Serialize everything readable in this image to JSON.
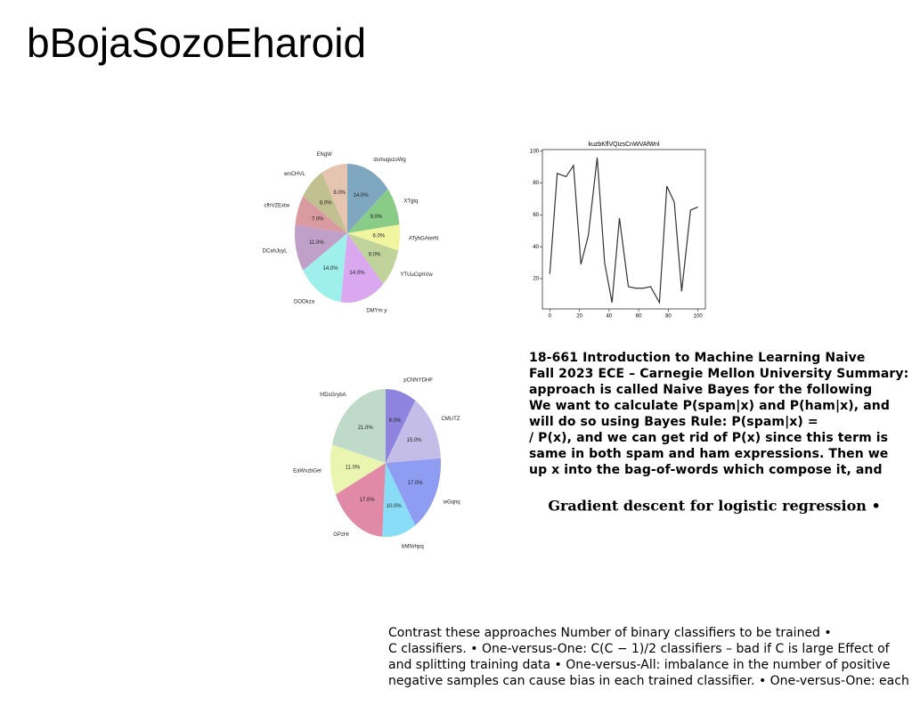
{
  "title": "bBojaSozoEharoid",
  "chart_data": [
    {
      "type": "pie",
      "categories": [
        "dsmugvzoWg",
        "XTgtq",
        "ATyhGAterN",
        "YTUuCqmVw",
        "DMYm y",
        "DOOkza",
        "DCahJuyL",
        "cfhVZExtw",
        "wnCHVL",
        "ENgW"
      ],
      "values": [
        14,
        9,
        6,
        9,
        14,
        14,
        11,
        7,
        8,
        8
      ],
      "value_labels": [
        "14.0%",
        "9.0%",
        "6.0%",
        "9.0%",
        "14.0%",
        "14.0%",
        "11.0%",
        "7.0%",
        "8.0%",
        "8.0%"
      ],
      "colors": [
        "#7fa8c0",
        "#88cc88",
        "#f2f5a0",
        "#bfd39a",
        "#d9a8ef",
        "#9ff0ec",
        "#c0a0c8",
        "#da9ba0",
        "#c0c090",
        "#e5c4b0"
      ]
    },
    {
      "type": "line",
      "title": "kuzbKflVQizsCnWVAfWnl",
      "x": [
        0,
        5,
        11,
        16,
        21,
        26,
        32,
        37,
        42,
        47,
        53,
        58,
        63,
        68,
        74,
        79,
        84,
        89,
        95,
        100
      ],
      "values": [
        23,
        86,
        84,
        91,
        29,
        47,
        96,
        30,
        5,
        58,
        15,
        14,
        14,
        15,
        5,
        78,
        68,
        12,
        63,
        65
      ],
      "color": "#333333",
      "xlim": [
        -5,
        105
      ],
      "ylim": [
        1,
        101
      ],
      "xticks": [
        0,
        20,
        40,
        60,
        80,
        100
      ],
      "yticks": [
        20,
        40,
        60,
        80,
        100
      ]
    },
    {
      "type": "pie",
      "categories": [
        "pCNNYDHF",
        "CMUTZ",
        "wGqnq",
        "bMNrhpq",
        "GPzHr",
        "EaWxzbGel",
        "hfDsGrybA"
      ],
      "values": [
        9,
        15,
        17,
        10,
        17,
        11,
        21
      ],
      "value_labels": [
        "9.0%",
        "15.0%",
        "17.0%",
        "10.0%",
        "17.0%",
        "11.0%",
        "21.0%"
      ],
      "colors": [
        "#8e84e0",
        "#c4bde8",
        "#8e9cf2",
        "#88dcf5",
        "#e08aa8",
        "#eaf5b0",
        "#bfdac8"
      ]
    }
  ],
  "summary_lines": [
    "18-661 Introduction to Machine Learning Naive",
    "Fall 2023 ECE – Carnegie Mellon University Summary:",
    "approach is called Naive Bayes for the following",
    "We want to calculate P(spam|x) and P(ham|x), and",
    "will do so using Bayes Rule: P(spam|x) =",
    "/ P(x), and we can get rid of P(x) since this term is",
    "same in both spam and ham expressions. Then we",
    "up x into the bag-of-words which compose it, and"
  ],
  "heading": "Gradient descent for logistic regression •",
  "body_lines": [
    "Contrast these approaches Number of binary classifiers to be trained •",
    "C classifiers. • One-versus-One: C(C − 1)/2 classifiers – bad if C is large Effect of",
    "and splitting training data • One-versus-All: imbalance in the number of positive",
    "negative samples can cause bias in each trained classifier. • One-versus-One: each"
  ]
}
